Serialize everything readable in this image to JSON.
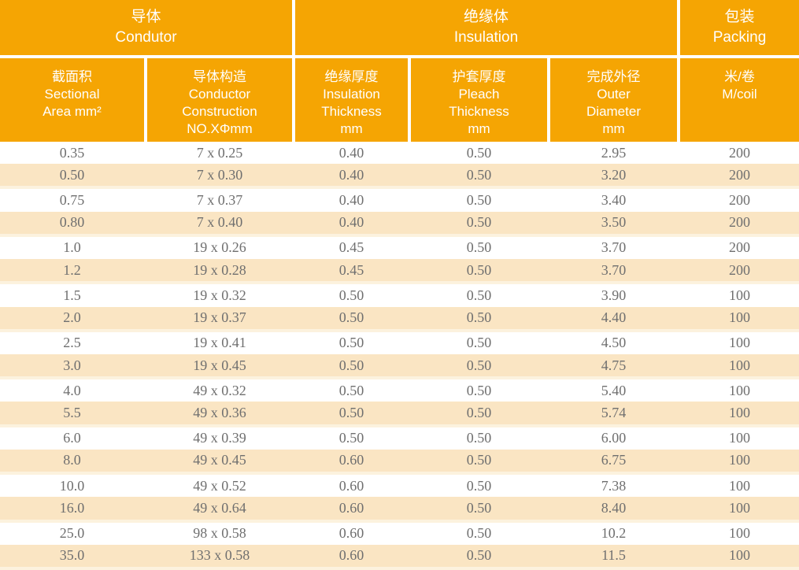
{
  "colors": {
    "header_orange": "#F5A503",
    "stripe": "#FAE5C3",
    "stripe_edge": "#FCF2DE",
    "data_text": "#6F6F6F",
    "header_text": "#FFFFFF"
  },
  "table": {
    "groups": [
      {
        "name": "conductor",
        "text": "导体\nCondutor"
      },
      {
        "name": "insulation",
        "text": "绝缘体\nInsulation"
      },
      {
        "name": "packing",
        "text": "包装\nPacking"
      }
    ],
    "columns": [
      {
        "name": "sectional-area",
        "text": "截面积\nSectional\nArea mm²"
      },
      {
        "name": "conductor-construction",
        "text": "导体构造\nConductor\nConstruction\nNO.XΦmm"
      },
      {
        "name": "insulation-thickness",
        "text": "绝缘厚度\nInsulation\nThickness\nmm"
      },
      {
        "name": "pleach-thickness",
        "text": "护套厚度\nPleach\nThickness\nmm"
      },
      {
        "name": "outer-diameter",
        "text": "完成外径\nOuter\nDiameter\nmm"
      },
      {
        "name": "m-per-coil",
        "text": "米/卷\nM/coil"
      }
    ],
    "rows": [
      [
        "0.35",
        "7 x 0.25",
        "0.40",
        "0.50",
        "2.95",
        "200"
      ],
      [
        "0.50",
        "7 x 0.30",
        "0.40",
        "0.50",
        "3.20",
        "200"
      ],
      [
        "0.75",
        "7 x 0.37",
        "0.40",
        "0.50",
        "3.40",
        "200"
      ],
      [
        "0.80",
        "7 x 0.40",
        "0.40",
        "0.50",
        "3.50",
        "200"
      ],
      [
        "1.0",
        "19 x 0.26",
        "0.45",
        "0.50",
        "3.70",
        "200"
      ],
      [
        "1.2",
        "19 x 0.28",
        "0.45",
        "0.50",
        "3.70",
        "200"
      ],
      [
        "1.5",
        "19 x 0.32",
        "0.50",
        "0.50",
        "3.90",
        "100"
      ],
      [
        "2.0",
        "19 x 0.37",
        "0.50",
        "0.50",
        "4.40",
        "100"
      ],
      [
        "2.5",
        "19 x 0.41",
        "0.50",
        "0.50",
        "4.50",
        "100"
      ],
      [
        "3.0",
        "19 x 0.45",
        "0.50",
        "0.50",
        "4.75",
        "100"
      ],
      [
        "4.0",
        "49 x 0.32",
        "0.50",
        "0.50",
        "5.40",
        "100"
      ],
      [
        "5.5",
        "49 x 0.36",
        "0.50",
        "0.50",
        "5.74",
        "100"
      ],
      [
        "6.0",
        "49 x 0.39",
        "0.50",
        "0.50",
        "6.00",
        "100"
      ],
      [
        "8.0",
        "49 x 0.45",
        "0.60",
        "0.50",
        "6.75",
        "100"
      ],
      [
        "10.0",
        "49 x 0.52",
        "0.60",
        "0.50",
        "7.38",
        "100"
      ],
      [
        "16.0",
        "49 x 0.64",
        "0.60",
        "0.50",
        "8.40",
        "100"
      ],
      [
        "25.0",
        "98 x 0.58",
        "0.60",
        "0.50",
        "10.2",
        "100"
      ],
      [
        "35.0",
        "133 x 0.58",
        "0.60",
        "0.50",
        "11.5",
        "100"
      ]
    ]
  }
}
